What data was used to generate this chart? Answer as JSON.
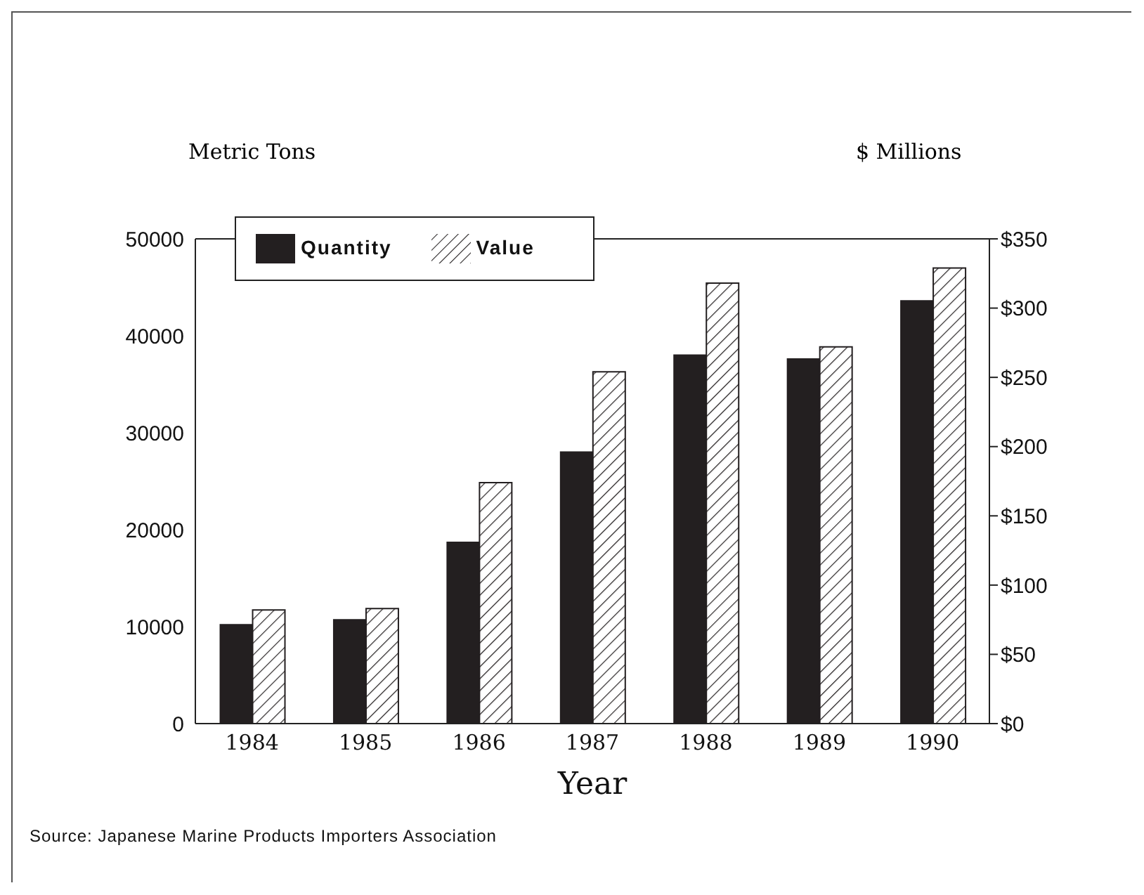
{
  "chart_data": {
    "type": "bar",
    "xlabel": "Year",
    "ylabel": "Metric Tons",
    "y2label": "$ Millions",
    "categories": [
      "1984",
      "1985",
      "1986",
      "1987",
      "1988",
      "1989",
      "1990"
    ],
    "series": [
      {
        "name": "Quantity",
        "color": "#231f20",
        "values": [
          10200,
          10700,
          18700,
          28000,
          38000,
          37600,
          43600
        ]
      },
      {
        "name": "Value",
        "color": "#231f20",
        "axis": "y2",
        "values": [
          82,
          83,
          174,
          254,
          318,
          272,
          329
        ]
      }
    ],
    "ylim": [
      0,
      50000
    ],
    "yticks": [
      0,
      10000,
      20000,
      30000,
      40000,
      50000
    ],
    "y2lim": [
      0,
      350
    ],
    "y2ticks": [
      {
        "value": 0,
        "label": "$0"
      },
      {
        "value": 50,
        "label": "$50"
      },
      {
        "value": 100,
        "label": "$100"
      },
      {
        "value": 150,
        "label": "$150"
      },
      {
        "value": 200,
        "label": "$200"
      },
      {
        "value": 250,
        "label": "$250"
      },
      {
        "value": 300,
        "label": "$300"
      },
      {
        "value": 350,
        "label": "$350"
      }
    ],
    "legend": "top left",
    "annotations": [
      "Source: Japanese Marine Products Importers Association"
    ]
  }
}
